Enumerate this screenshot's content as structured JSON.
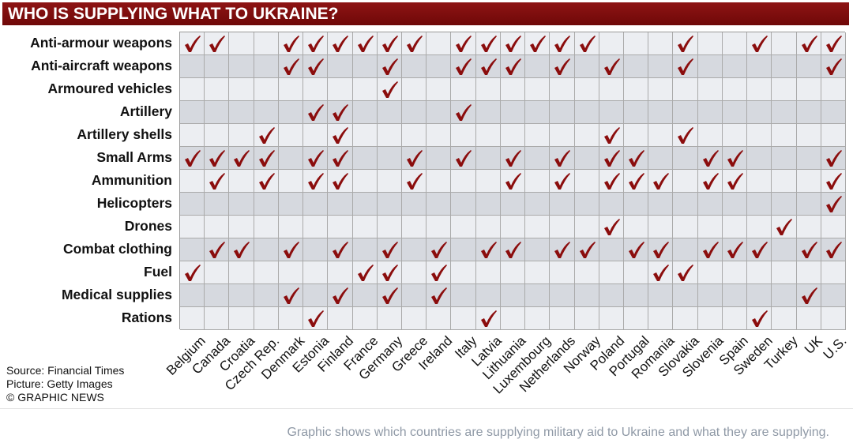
{
  "title": "WHO IS SUPPLYING WHAT TO UKRAINE?",
  "colors": {
    "check": "#8b0d0d",
    "row_light": "#eceef2",
    "row_dark": "#d6d9df",
    "title_bg": "#7f0e0e"
  },
  "source_lines": [
    "Source: Financial Times",
    "Picture: Getty Images",
    "© GRAPHIC NEWS"
  ],
  "caption": "Graphic shows which countries are supplying military aid to Ukraine and what they are supplying.",
  "chart_data": {
    "type": "table",
    "title": "WHO IS SUPPLYING WHAT TO UKRAINE?",
    "columns": [
      "Belgium",
      "Canada",
      "Croatia",
      "Czech Rep.",
      "Denmark",
      "Estonia",
      "Finland",
      "France",
      "Germany",
      "Greece",
      "Ireland",
      "Italy",
      "Latvia",
      "Lithuania",
      "Luxembourg",
      "Netherlands",
      "Norway",
      "Poland",
      "Portugal",
      "Romania",
      "Slovakia",
      "Slovenia",
      "Spain",
      "Sweden",
      "Turkey",
      "UK",
      "U.S."
    ],
    "rows": [
      {
        "label": "Anti-armour weapons",
        "marks": "xx..xxxxxx.xxxxxx...x..x.xx"
      },
      {
        "label": "Anti-aircraft weapons",
        "marks": "....xx..x..xxx.x.x..x.....x"
      },
      {
        "label": "Armoured vehicles",
        "marks": "........x.................."
      },
      {
        "label": "Artillery",
        "marks": ".....xx....x..............."
      },
      {
        "label": "Artillery shells",
        "marks": "...x..x..........x..x......"
      },
      {
        "label": "Small Arms",
        "marks": "xxxx.xx..x.x.x.x.xx..xx...x"
      },
      {
        "label": "Ammunition",
        "marks": ".x.x.xx..x...x.x.xxx.xx...x"
      },
      {
        "label": "Helicopters",
        "marks": "..........................x"
      },
      {
        "label": "Drones",
        "marks": ".................x......x.."
      },
      {
        "label": "Combat clothing",
        "marks": ".xx.x.x.x.x.xx.xx.xx.xxx.xx"
      },
      {
        "label": "Fuel",
        "marks": "x......xx.x........xx......"
      },
      {
        "label": "Medical supplies",
        "marks": "....x.x.x.x..............x."
      },
      {
        "label": "Rations",
        "marks": ".....x......x..........x..."
      }
    ],
    "legend": "check mark = supplying"
  }
}
